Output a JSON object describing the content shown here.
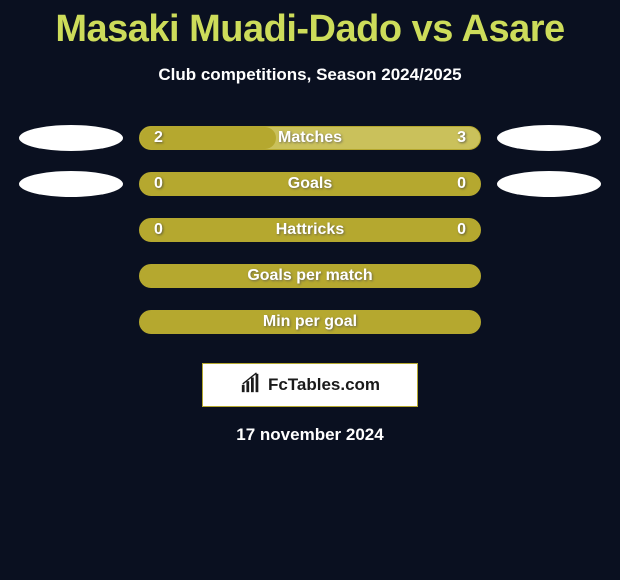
{
  "title": "Masaki Muadi-Dado vs Asare",
  "subtitle": "Club competitions, Season 2024/2025",
  "date": "17 november 2024",
  "logo_text": "FcTables.com",
  "colors": {
    "background": "#0a1020",
    "title": "#cddc5a",
    "text": "#ffffff",
    "bar_outline": "#b5a82f",
    "bar_light": "#cac15b",
    "bar_dark": "#b5a82f",
    "oval": "#ffffff"
  },
  "rows": [
    {
      "label": "Matches",
      "left_value": "2",
      "right_value": "3",
      "show_ovals": true,
      "left_fill_pct": 40,
      "left_fill_color": "#b5a82f",
      "bg_color": "#cac15b"
    },
    {
      "label": "Goals",
      "left_value": "0",
      "right_value": "0",
      "show_ovals": true,
      "left_fill_pct": 0,
      "left_fill_color": "#b5a82f",
      "bg_color": "#b5a82f"
    },
    {
      "label": "Hattricks",
      "left_value": "0",
      "right_value": "0",
      "show_ovals": false,
      "left_fill_pct": 0,
      "left_fill_color": "#b5a82f",
      "bg_color": "#b5a82f"
    },
    {
      "label": "Goals per match",
      "left_value": "",
      "right_value": "",
      "show_ovals": false,
      "left_fill_pct": 0,
      "left_fill_color": "#b5a82f",
      "bg_color": "#b5a82f"
    },
    {
      "label": "Min per goal",
      "left_value": "",
      "right_value": "",
      "show_ovals": false,
      "left_fill_pct": 0,
      "left_fill_color": "#b5a82f",
      "bg_color": "#b5a82f"
    }
  ]
}
